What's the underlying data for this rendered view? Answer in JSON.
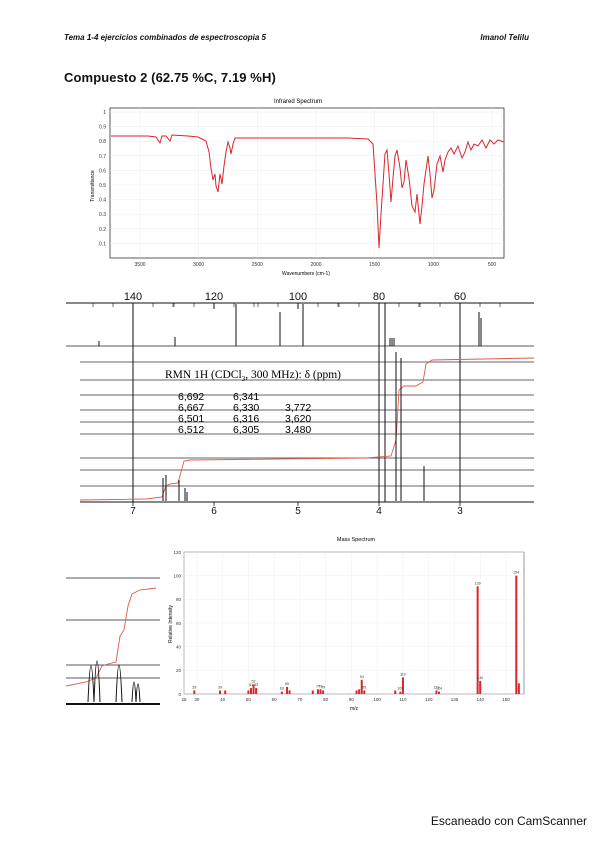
{
  "header": {
    "left": "Tema 1-4 ejercicios combinados de espectroscopia 5",
    "right": "Imanol Telilu"
  },
  "compound_title": "Compuesto 2 (62.75 %C, 7.19 %H)",
  "ir": {
    "title": "Infrared Spectrum",
    "xlabel": "Wavenumbers (cm-1)",
    "ylabel": "Transmittance",
    "xticks": [
      "3500",
      "3000",
      "2500",
      "2000",
      "1500",
      "1000",
      "500"
    ],
    "yticks": [
      "1",
      "0.9",
      "0.8",
      "0.7",
      "0.6",
      "0.5",
      "0.4",
      "0.3",
      "0.2",
      "0.1"
    ],
    "line_color": "#d9262c"
  },
  "c13": {
    "ticks": [
      "140",
      "120",
      "100",
      "80",
      "60"
    ]
  },
  "h1": {
    "ticks": [
      "7",
      "6",
      "5",
      "4",
      "3"
    ],
    "table_title_pre": "RMN 1H (CDCl",
    "table_title_sub": "3",
    "table_title_post": ", 300 MHz): δ (ppm)",
    "col1": [
      "6,692",
      "6,667",
      "6,501",
      "6,512"
    ],
    "col2": [
      "6,341",
      "6,330",
      "6,316",
      "6,305"
    ],
    "col3": [
      "",
      "3,772",
      "3,620",
      "3,480"
    ],
    "integral_color": "#e05a4a"
  },
  "ms": {
    "title": "Mass Spectrum",
    "xlabel": "m/z",
    "ylabel": "Relative Intensity",
    "yticks": [
      "120",
      "100",
      "80",
      "60",
      "40",
      "20",
      "0"
    ],
    "xticks": [
      "25",
      "30",
      "40",
      "50",
      "60",
      "70",
      "80",
      "90",
      "100",
      "110",
      "120",
      "130",
      "140",
      "150"
    ],
    "bar_color": "#d9262c",
    "chart_data": {
      "type": "bar",
      "x": [
        29,
        39,
        41,
        50,
        51,
        52,
        53,
        63,
        65,
        66,
        75,
        77,
        78,
        79,
        92,
        93,
        94,
        95,
        107,
        109,
        110,
        123,
        124,
        139,
        140,
        154,
        155
      ],
      "values": [
        3,
        3,
        3,
        3,
        5,
        8,
        5,
        2,
        6,
        3,
        3,
        4,
        4,
        3,
        3,
        4,
        12,
        3,
        3,
        2,
        14,
        3,
        2,
        91,
        11,
        100,
        9
      ],
      "peak_labels": [
        "29",
        "39",
        "51",
        "52",
        "53",
        "63",
        "65",
        "77",
        "78",
        "79",
        "94",
        "95",
        "109",
        "110",
        "123",
        "124",
        "139",
        "140",
        "154"
      ],
      "ylim": [
        0,
        120
      ],
      "xlim": [
        25,
        157
      ]
    }
  },
  "footer": "Escaneado con CamScanner"
}
